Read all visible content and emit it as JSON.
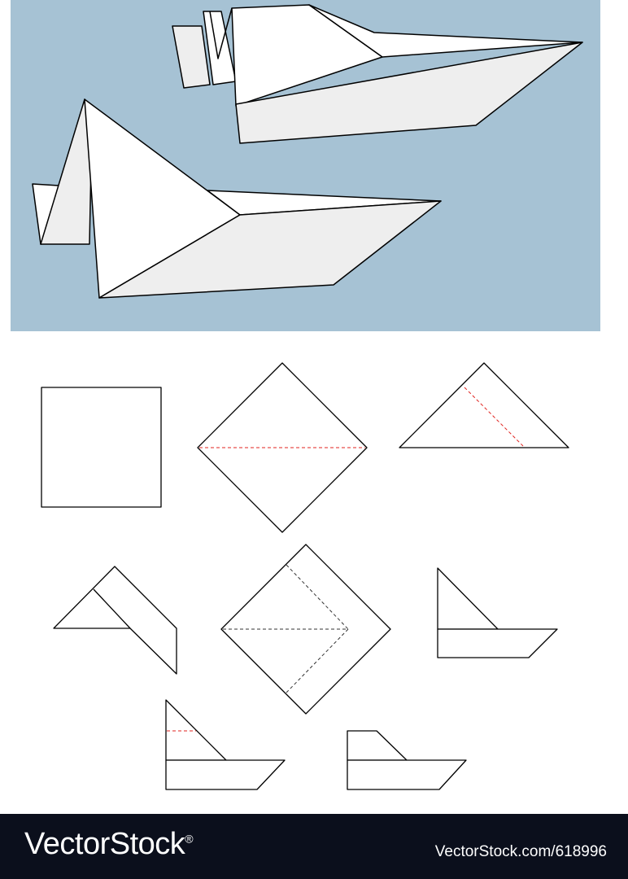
{
  "colors": {
    "water": "#a6c2d4",
    "paper": "#ffffff",
    "paper_shade": "#eeeeee",
    "outline": "#000000",
    "fold_red": "#e0231f",
    "fold_dark": "#333333",
    "footer": "#0b0f1c"
  },
  "footer": {
    "brand": "VectorStock",
    "trademark": "®",
    "site_id": "VectorStock.com/618996"
  }
}
